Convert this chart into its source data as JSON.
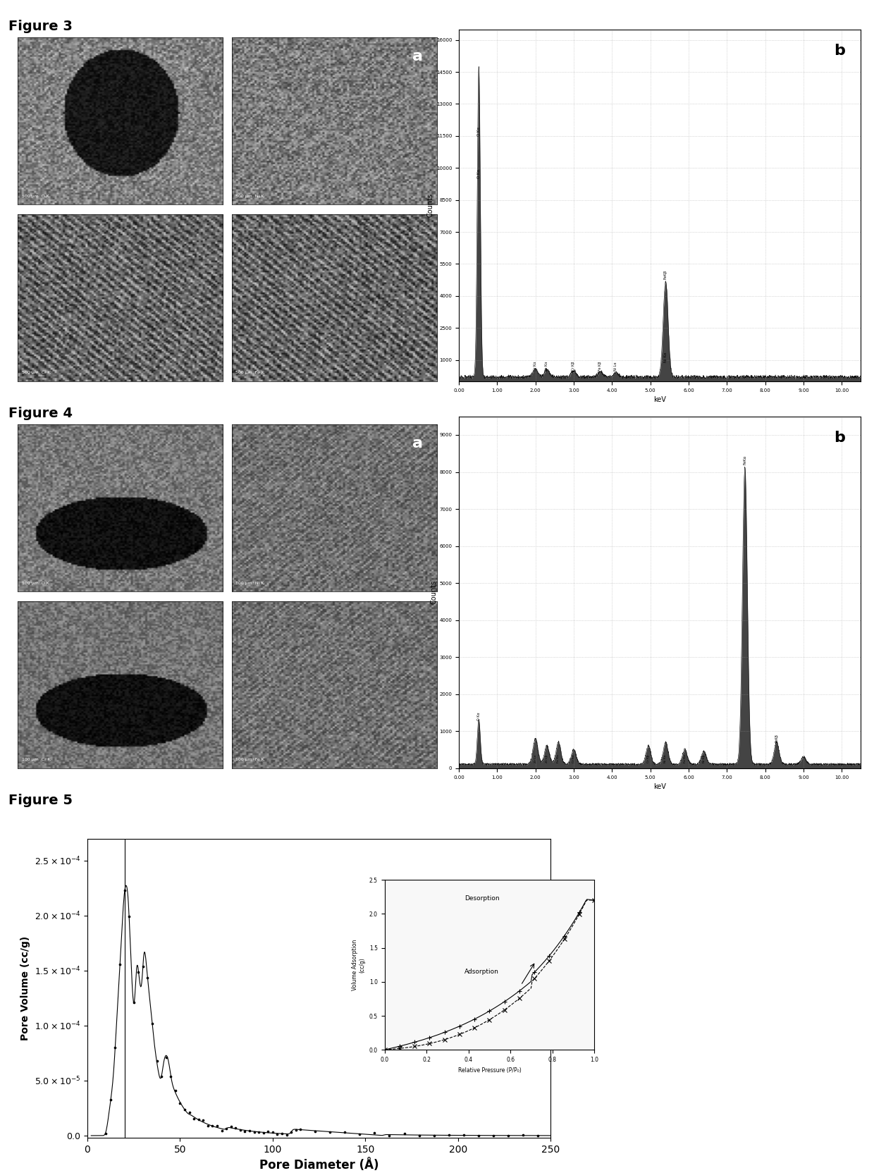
{
  "fig3_label": "Figure 3",
  "fig4_label": "Figure 4",
  "fig5_label": "Figure 5",
  "fig3_edx_ylabel": "Counts",
  "fig3_edx_xlabel": "keV",
  "fig4_edx_ylabel": "Counts",
  "fig4_edx_xlabel": "keV",
  "fig5_xlabel": "Pore Diameter (Å)",
  "fig5_ylabel": "Pore Volume (cc/g)",
  "fig5_ytick_vals": [
    0.0,
    5e-05,
    0.0001,
    0.00015,
    0.0002,
    0.00025
  ],
  "fig5_ytick_labels": [
    "0.0",
    "5.0x10⁻⁵",
    "1.0x10⁻⁴",
    "1.5x10⁻⁴",
    "2.0x10⁻⁴",
    "2.5x10⁻⁴"
  ],
  "inset_xlabel": "Relative Pressure (P/P₀)",
  "inset_ylabel": "Volume Adsorption\n(cc/g)",
  "bg_color": "#ffffff",
  "plot_bg_color": "#ffffff",
  "grid_color": "#999999"
}
